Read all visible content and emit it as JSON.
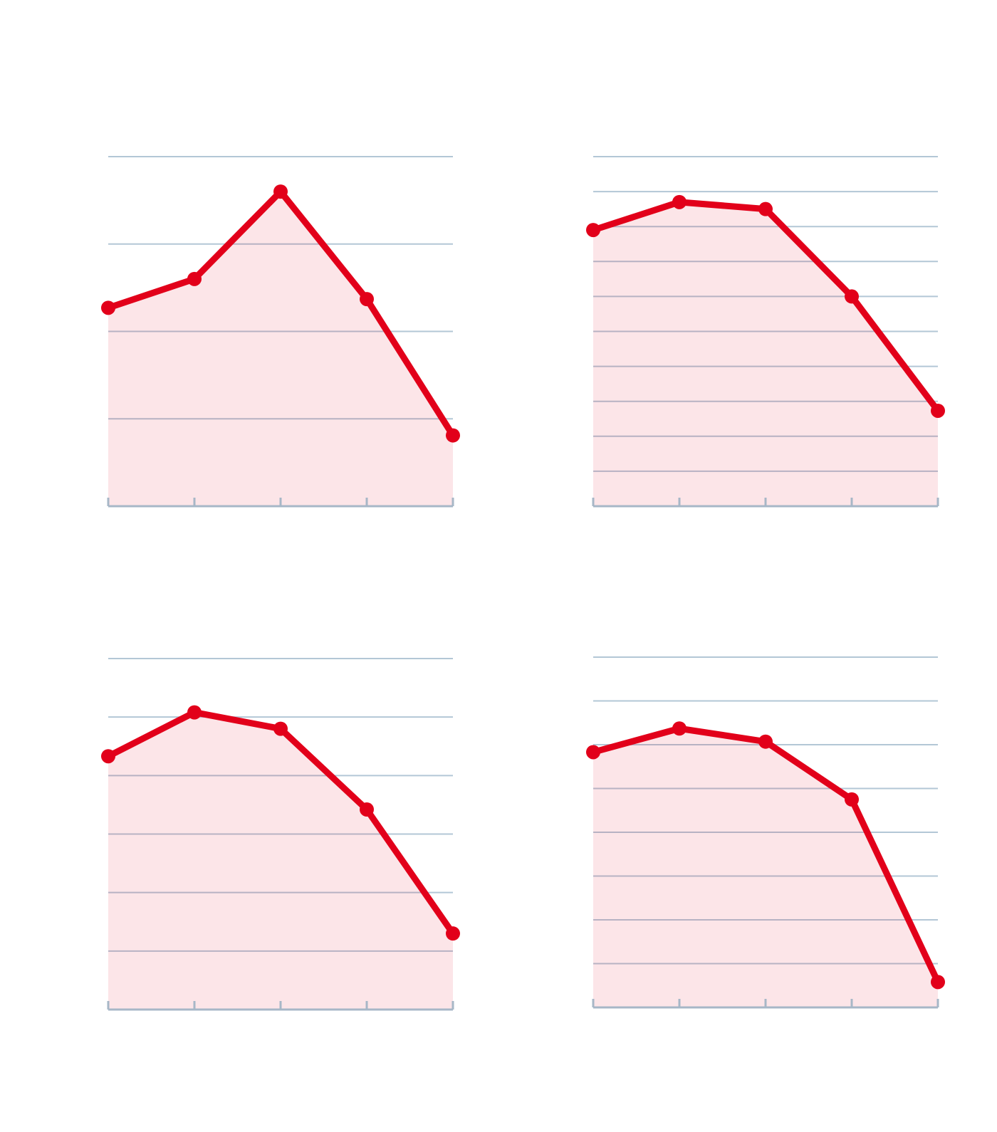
{
  "colors": {
    "line": "#e2001a",
    "area": "#e2001a",
    "grid": "#b3c7d6",
    "axis": "#a7b7c7",
    "background": "#ffffff"
  },
  "chart_data": [
    {
      "type": "area",
      "title": "",
      "xlabel": "",
      "ylabel": "",
      "x": [
        1,
        2,
        3,
        4,
        5
      ],
      "ylim": [
        0,
        4
      ],
      "yticks": [
        0,
        1,
        2,
        3,
        4
      ],
      "grid": true,
      "series": [
        {
          "values": [
            2.27,
            2.6,
            3.6,
            2.37,
            0.81
          ]
        }
      ]
    },
    {
      "type": "area",
      "title": "",
      "xlabel": "",
      "ylabel": "",
      "x": [
        1,
        2,
        3,
        4,
        5
      ],
      "ylim": [
        0,
        10
      ],
      "yticks": [
        0,
        1,
        2,
        3,
        4,
        5,
        6,
        7,
        8,
        9,
        10
      ],
      "grid": true,
      "series": [
        {
          "values": [
            7.9,
            8.7,
            8.5,
            6.0,
            2.73
          ]
        }
      ]
    },
    {
      "type": "area",
      "title": "",
      "xlabel": "",
      "ylabel": "",
      "x": [
        1,
        2,
        3,
        4,
        5
      ],
      "ylim": [
        0,
        6
      ],
      "yticks": [
        0,
        1,
        2,
        3,
        4,
        5,
        6
      ],
      "grid": true,
      "series": [
        {
          "values": [
            4.33,
            5.08,
            4.8,
            3.42,
            1.3
          ]
        }
      ]
    },
    {
      "type": "area",
      "title": "",
      "xlabel": "",
      "ylabel": "",
      "x": [
        1,
        2,
        3,
        4,
        5
      ],
      "ylim": [
        0,
        8
      ],
      "yticks": [
        0,
        1,
        2,
        3,
        4,
        5,
        6,
        7,
        8
      ],
      "grid": true,
      "series": [
        {
          "values": [
            5.83,
            6.37,
            6.07,
            4.75,
            0.58
          ]
        }
      ]
    }
  ]
}
